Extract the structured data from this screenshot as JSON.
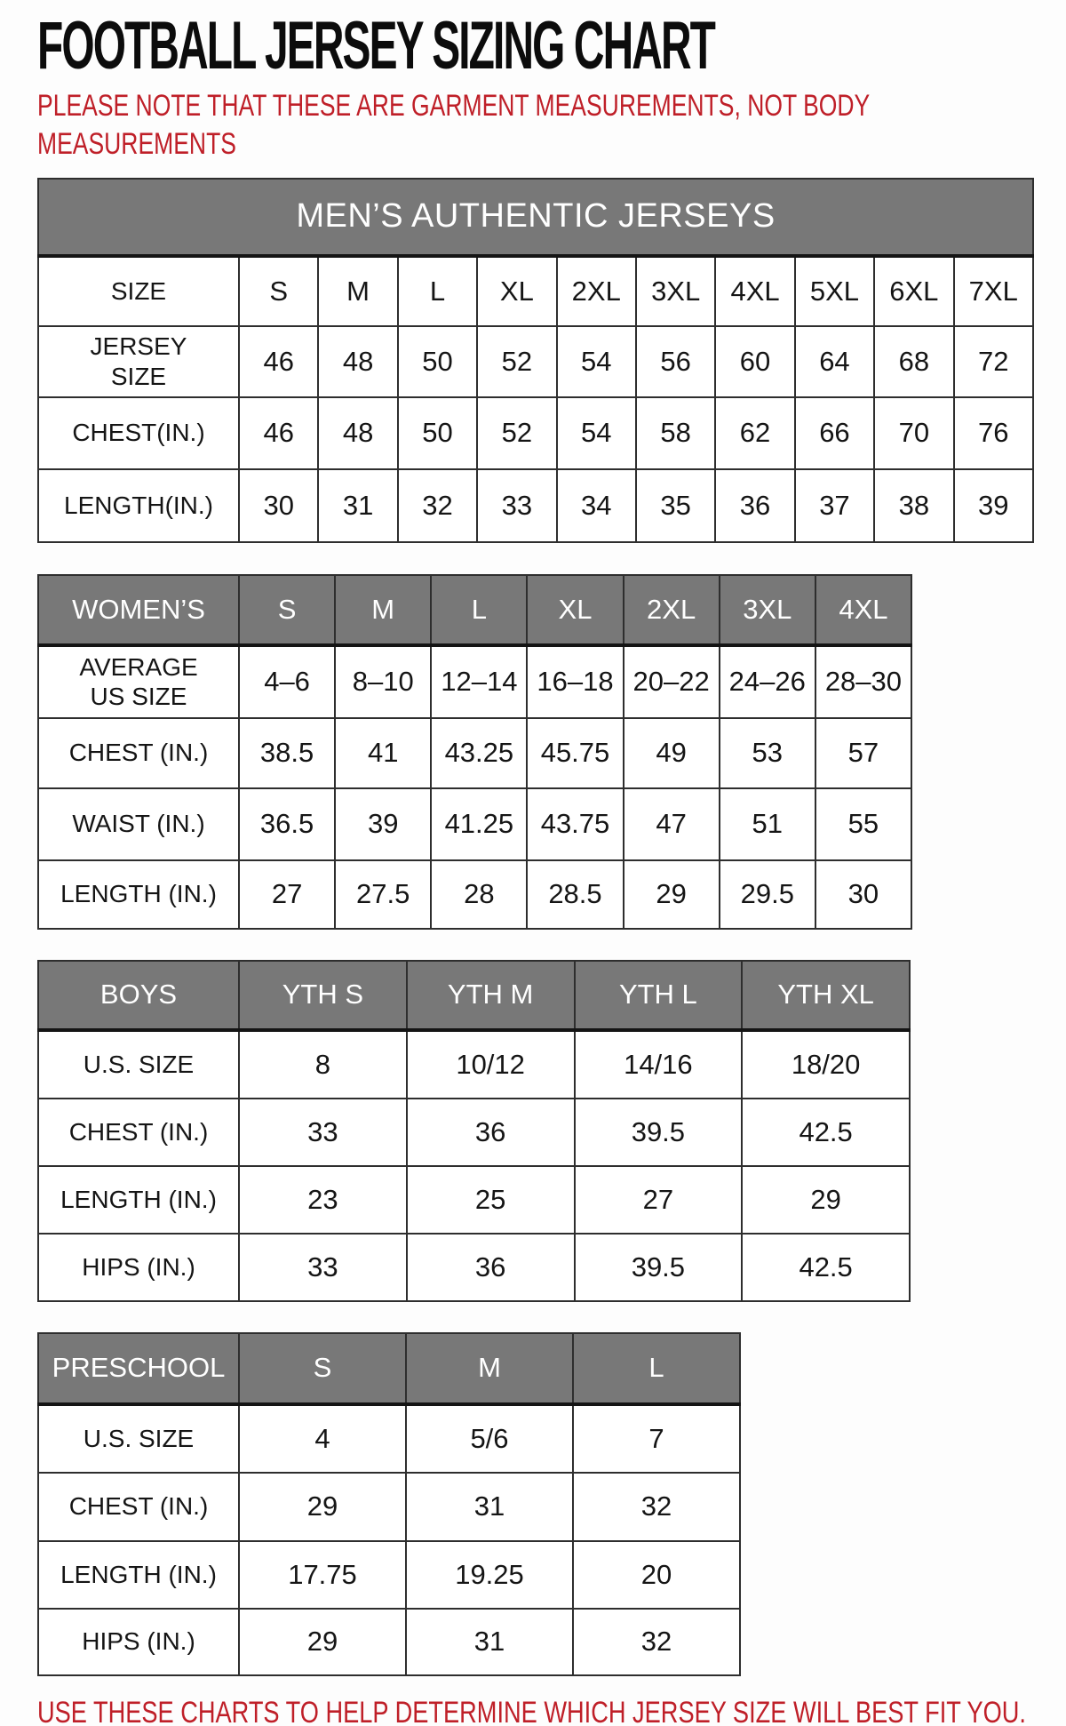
{
  "title": "FOOTBALL JERSEY SIZING CHART",
  "note": "PLEASE NOTE THAT THESE ARE GARMENT MEASUREMENTS, NOT BODY MEASUREMENTS",
  "footer": "USE THESE CHARTS TO HELP DETERMINE WHICH JERSEY SIZE WILL BEST FIT YOU.",
  "colors": {
    "accent_red": "#bf1f28",
    "header_gray": "#787878",
    "border_dark": "#2e2e2e"
  },
  "tables": {
    "mens": {
      "banner": "MEN’S AUTHENTIC JERSEYS",
      "rows": [
        {
          "label": "SIZE",
          "values": [
            "S",
            "M",
            "L",
            "XL",
            "2XL",
            "3XL",
            "4XL",
            "5XL",
            "6XL",
            "7XL"
          ]
        },
        {
          "label": "JERSEY SIZE",
          "values": [
            "46",
            "48",
            "50",
            "52",
            "54",
            "56",
            "60",
            "64",
            "68",
            "72"
          ]
        },
        {
          "label": "CHEST(IN.)",
          "values": [
            "46",
            "48",
            "50",
            "52",
            "54",
            "58",
            "62",
            "66",
            "70",
            "76"
          ]
        },
        {
          "label": "LENGTH(IN.)",
          "values": [
            "30",
            "31",
            "32",
            "33",
            "34",
            "35",
            "36",
            "37",
            "38",
            "39"
          ]
        }
      ]
    },
    "womens": {
      "header": [
        "WOMEN’S",
        "S",
        "M",
        "L",
        "XL",
        "2XL",
        "3XL",
        "4XL"
      ],
      "rows": [
        {
          "label": "AVERAGE US SIZE",
          "values": [
            "4–6",
            "8–10",
            "12–14",
            "16–18",
            "20–22",
            "24–26",
            "28–30"
          ]
        },
        {
          "label": "CHEST (IN.)",
          "values": [
            "38.5",
            "41",
            "43.25",
            "45.75",
            "49",
            "53",
            "57"
          ]
        },
        {
          "label": "WAIST (IN.)",
          "values": [
            "36.5",
            "39",
            "41.25",
            "43.75",
            "47",
            "51",
            "55"
          ]
        },
        {
          "label": "LENGTH (IN.)",
          "values": [
            "27",
            "27.5",
            "28",
            "28.5",
            "29",
            "29.5",
            "30"
          ]
        }
      ]
    },
    "boys": {
      "header": [
        "BOYS",
        "YTH S",
        "YTH M",
        "YTH L",
        "YTH XL"
      ],
      "rows": [
        {
          "label": "U.S. SIZE",
          "values": [
            "8",
            "10/12",
            "14/16",
            "18/20"
          ]
        },
        {
          "label": "CHEST (IN.)",
          "values": [
            "33",
            "36",
            "39.5",
            "42.5"
          ]
        },
        {
          "label": "LENGTH (IN.)",
          "values": [
            "23",
            "25",
            "27",
            "29"
          ]
        },
        {
          "label": "HIPS (IN.)",
          "values": [
            "33",
            "36",
            "39.5",
            "42.5"
          ]
        }
      ]
    },
    "preschool": {
      "header": [
        "PRESCHOOL",
        "S",
        "M",
        "L"
      ],
      "rows": [
        {
          "label": "U.S. SIZE",
          "values": [
            "4",
            "5/6",
            "7"
          ]
        },
        {
          "label": "CHEST (IN.)",
          "values": [
            "29",
            "31",
            "32"
          ]
        },
        {
          "label": "LENGTH (IN.)",
          "values": [
            "17.75",
            "19.25",
            "20"
          ]
        },
        {
          "label": "HIPS (IN.)",
          "values": [
            "29",
            "31",
            "32"
          ]
        }
      ]
    }
  }
}
